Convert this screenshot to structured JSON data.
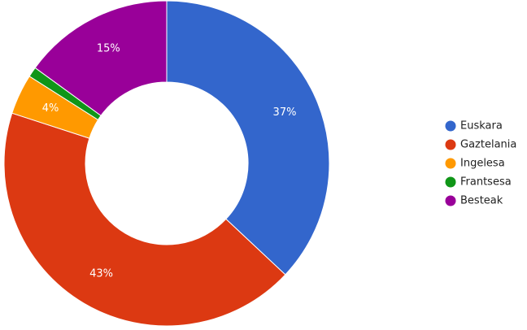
{
  "chart_data": {
    "type": "donut",
    "categories": [
      "Euskara",
      "Gaztelania",
      "Ingelesa",
      "Frantsesa",
      "Besteak"
    ],
    "values": [
      37,
      43,
      4,
      1,
      15
    ],
    "value_labels": [
      "37%",
      "43%",
      "4%",
      null,
      "15%"
    ],
    "colors": [
      "#3366cc",
      "#dc3912",
      "#ff9900",
      "#109618",
      "#990099"
    ],
    "legend": "right"
  }
}
